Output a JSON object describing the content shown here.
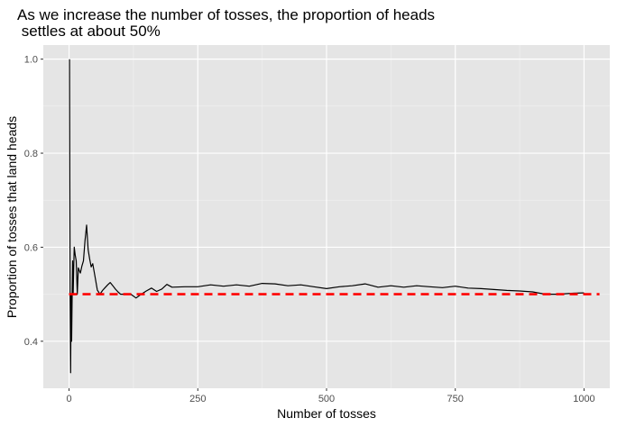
{
  "chart_data": {
    "type": "line",
    "title_lines": [
      "As we increase the number of tosses, the proportion of heads",
      " settles at about 50%"
    ],
    "xlabel": "Number of tosses",
    "ylabel": "Proportion of tosses that land heads",
    "xlim": [
      -50,
      1050
    ],
    "ylim": [
      0.3,
      1.03
    ],
    "xticks": [
      0,
      250,
      500,
      750,
      1000
    ],
    "xtick_labels": [
      "0",
      "250",
      "500",
      "750",
      "1000"
    ],
    "yticks": [
      0.4,
      0.6,
      0.8,
      1.0
    ],
    "ytick_labels": [
      "0.4",
      "0.6",
      "0.8",
      "1.0"
    ],
    "grid": true,
    "panel_background": "#e5e5e5",
    "series": [
      {
        "line_color": "#000000",
        "x": [
          1,
          2,
          3,
          4,
          5,
          6,
          7,
          8,
          9,
          10,
          12,
          14,
          16,
          18,
          20,
          22,
          25,
          28,
          31,
          34,
          37,
          40,
          43,
          46,
          50,
          55,
          60,
          65,
          70,
          75,
          80,
          85,
          90,
          95,
          100,
          110,
          120,
          130,
          140,
          150,
          160,
          170,
          180,
          190,
          200,
          225,
          250,
          275,
          300,
          325,
          350,
          375,
          400,
          425,
          450,
          475,
          500,
          525,
          550,
          575,
          600,
          625,
          650,
          675,
          700,
          725,
          750,
          775,
          800,
          825,
          850,
          875,
          900,
          925,
          950,
          975,
          1000
        ],
        "y": [
          1.0,
          0.5,
          0.333,
          0.5,
          0.4,
          0.5,
          0.571,
          0.5,
          0.556,
          0.6,
          0.583,
          0.571,
          0.5,
          0.556,
          0.55,
          0.545,
          0.56,
          0.571,
          0.613,
          0.647,
          0.595,
          0.575,
          0.558,
          0.565,
          0.54,
          0.509,
          0.5,
          0.508,
          0.514,
          0.52,
          0.525,
          0.518,
          0.511,
          0.505,
          0.5,
          0.5,
          0.5,
          0.492,
          0.5,
          0.507,
          0.513,
          0.506,
          0.511,
          0.521,
          0.515,
          0.516,
          0.516,
          0.52,
          0.517,
          0.52,
          0.517,
          0.523,
          0.522,
          0.518,
          0.52,
          0.516,
          0.512,
          0.516,
          0.518,
          0.522,
          0.515,
          0.518,
          0.515,
          0.518,
          0.516,
          0.514,
          0.517,
          0.513,
          0.512,
          0.51,
          0.508,
          0.507,
          0.505,
          0.5,
          0.5,
          0.502,
          0.503
        ]
      },
      {
        "line_color": "#ff0000",
        "line_style": "dashed",
        "x": [
          0,
          1030
        ],
        "y": [
          0.5,
          0.5
        ]
      }
    ]
  }
}
